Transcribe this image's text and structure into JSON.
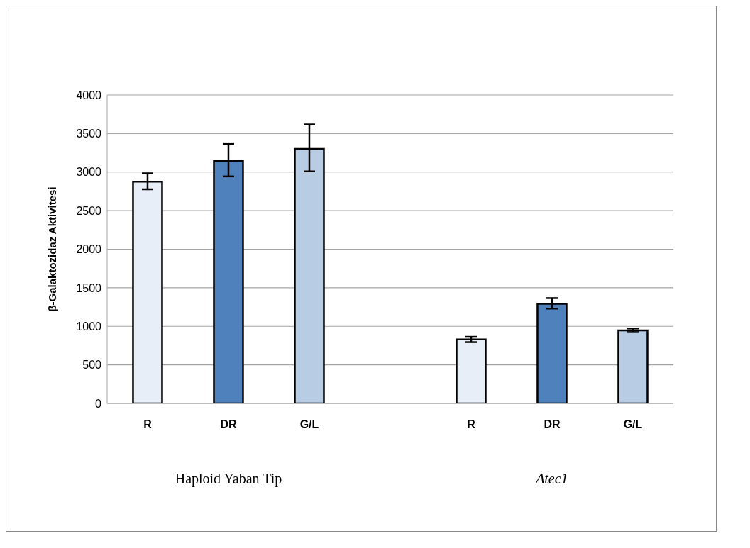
{
  "chart_data": {
    "type": "bar",
    "ylabel": "β-Galaktozidaz Aktivitesi",
    "categories": [
      "R",
      "DR",
      "G/L",
      null,
      "R",
      "DR",
      "G/L"
    ],
    "values": [
      2875,
      3145,
      3302,
      null,
      829,
      1292,
      947
    ],
    "errors": [
      [
        2777,
        2984
      ],
      [
        2944,
        3364
      ],
      [
        3009,
        3618
      ],
      null,
      [
        795,
        864
      ],
      [
        1230,
        1366
      ],
      [
        925,
        972
      ]
    ],
    "colors": [
      "#e8eef8",
      "#4f81bd",
      "#b8cce4",
      "#ffffff",
      "#e8eef8",
      "#4f81bd",
      "#b8cce4"
    ],
    "ylim": [
      0,
      4000
    ],
    "yticks": [
      0,
      500,
      1000,
      1500,
      2000,
      2500,
      3000,
      3500,
      4000
    ],
    "grid": "y",
    "annotations": [
      "Haploid Yaban Tip",
      "Δtec1"
    ]
  }
}
